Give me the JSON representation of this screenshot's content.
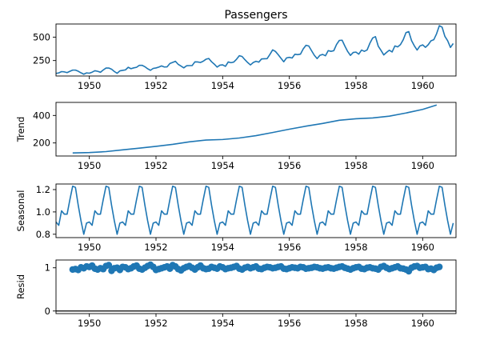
{
  "chart_data": [
    {
      "type": "line",
      "title": "Passengers",
      "ylabel": "",
      "xlim": [
        1949.0,
        1961.0
      ],
      "ylim": [
        85,
        640
      ],
      "xticks": [
        1950,
        1952,
        1954,
        1956,
        1958,
        1960
      ],
      "xtick_labels": [
        "1950",
        "1952",
        "1954",
        "1956",
        "1958",
        "1960"
      ],
      "yticks": [
        250,
        500
      ],
      "ytick_labels": [
        "250",
        "500"
      ],
      "x_start": 1949.0,
      "x_step": 0.0833333,
      "values": [
        112,
        118,
        132,
        129,
        121,
        135,
        148,
        148,
        136,
        119,
        104,
        118,
        115,
        126,
        141,
        135,
        125,
        149,
        170,
        170,
        158,
        133,
        114,
        140,
        145,
        150,
        178,
        163,
        172,
        178,
        199,
        199,
        184,
        162,
        146,
        166,
        171,
        180,
        193,
        181,
        183,
        218,
        230,
        242,
        209,
        191,
        172,
        194,
        196,
        196,
        236,
        235,
        229,
        243,
        264,
        272,
        237,
        211,
        180,
        201,
        204,
        188,
        235,
        227,
        234,
        264,
        302,
        293,
        259,
        229,
        203,
        229,
        242,
        233,
        267,
        269,
        270,
        315,
        364,
        347,
        312,
        274,
        237,
        278,
        284,
        277,
        317,
        313,
        318,
        374,
        413,
        405,
        355,
        306,
        271,
        306,
        315,
        301,
        356,
        348,
        355,
        422,
        465,
        467,
        404,
        347,
        305,
        336,
        340,
        318,
        362,
        348,
        363,
        435,
        491,
        505,
        404,
        359,
        310,
        337,
        360,
        342,
        406,
        396,
        420,
        472,
        548,
        559,
        463,
        407,
        362,
        405,
        417,
        391,
        419,
        461,
        472,
        535,
        622,
        606,
        508,
        461,
        390,
        432
      ]
    },
    {
      "type": "line",
      "title": "",
      "ylabel": "Trend",
      "xlim": [
        1949.0,
        1961.0
      ],
      "ylim": [
        105,
        495
      ],
      "xticks": [
        1950,
        1952,
        1954,
        1956,
        1958,
        1960
      ],
      "xtick_labels": [
        "1950",
        "1952",
        "1954",
        "1956",
        "1958",
        "1960"
      ],
      "yticks": [
        200,
        400
      ],
      "ytick_labels": [
        "200",
        "400"
      ],
      "x": [
        1949.5,
        1950.0,
        1950.5,
        1951.0,
        1951.5,
        1952.0,
        1952.5,
        1953.0,
        1953.5,
        1954.0,
        1954.5,
        1955.0,
        1955.5,
        1956.0,
        1956.5,
        1957.0,
        1957.5,
        1958.0,
        1958.5,
        1959.0,
        1959.5,
        1960.0,
        1960.42
      ],
      "values": [
        127,
        130,
        137,
        150,
        162,
        175,
        190,
        208,
        221,
        225,
        236,
        253,
        276,
        300,
        322,
        342,
        365,
        376,
        382,
        395,
        418,
        444,
        476
      ]
    },
    {
      "type": "line",
      "title": "",
      "ylabel": "Seasonal",
      "xlim": [
        1949.0,
        1961.0
      ],
      "ylim": [
        0.77,
        1.25
      ],
      "xticks": [
        1950,
        1952,
        1954,
        1956,
        1958,
        1960
      ],
      "xtick_labels": [
        "1950",
        "1952",
        "1954",
        "1956",
        "1958",
        "1960"
      ],
      "yticks": [
        0.8,
        1.0,
        1.2
      ],
      "ytick_labels": [
        "0.8",
        "1.0",
        "1.2"
      ],
      "x_start": 1949.0,
      "x_step": 0.0833333,
      "pattern": [
        0.91,
        0.88,
        1.01,
        0.98,
        0.98,
        1.11,
        1.23,
        1.22,
        1.06,
        0.92,
        0.8,
        0.9
      ]
    },
    {
      "type": "scatter",
      "title": "",
      "ylabel": "Resid",
      "xlim": [
        1949.0,
        1961.0
      ],
      "ylim": [
        -0.06,
        1.18
      ],
      "xticks": [
        1950,
        1952,
        1954,
        1956,
        1958,
        1960
      ],
      "xtick_labels": [
        "1950",
        "1952",
        "1954",
        "1956",
        "1958",
        "1960"
      ],
      "yticks": [
        0,
        1
      ],
      "ytick_labels": [
        "0",
        "1"
      ],
      "x_start": 1949.5,
      "x_step": 0.0833333,
      "values": [
        0.96,
        0.97,
        0.95,
        1.01,
        0.99,
        1.03,
        1.02,
        1.05,
        0.98,
        0.96,
        0.99,
        0.97,
        1.04,
        1.06,
        0.93,
        0.99,
        1.0,
        0.95,
        1.02,
        1.01,
        0.97,
        0.99,
        1.03,
        1.05,
        0.98,
        0.96,
        1.0,
        1.04,
        1.07,
        1.02,
        0.95,
        0.97,
        0.99,
        1.01,
        1.03,
        0.98,
        1.06,
        1.03,
        0.97,
        0.94,
        0.99,
        1.02,
        1.04,
        1.0,
        0.96,
        1.01,
        1.05,
        0.99,
        0.97,
        0.98,
        1.02,
        1.0,
        0.98,
        1.03,
        1.01,
        0.97,
        0.99,
        1.0,
        1.02,
        1.04,
        0.98,
        0.96,
        1.0,
        1.02,
        0.99,
        1.01,
        1.03,
        0.98,
        0.97,
        1.0,
        1.02,
        1.01,
        0.99,
        1.0,
        1.02,
        1.03,
        0.98,
        0.97,
        0.99,
        1.01,
        1.0,
        0.99,
        1.02,
        1.01,
        0.98,
        0.99,
        1.0,
        1.02,
        1.01,
        0.99,
        0.98,
        1.0,
        1.01,
        0.99,
        0.98,
        1.0,
        1.02,
        1.03,
        1.0,
        0.98,
        0.96,
        0.99,
        1.01,
        1.02,
        0.98,
        0.97,
        1.0,
        1.01,
        0.99,
        0.98,
        0.96,
        1.02,
        1.04,
        1.0,
        0.97,
        0.99,
        1.01,
        1.03,
        0.99,
        0.98,
        0.96,
        0.92,
        1.0,
        1.03,
        1.04,
        1.0,
        1.01,
        1.02,
        0.97,
        0.98,
        0.95,
        1.0,
        1.02
      ]
    }
  ]
}
